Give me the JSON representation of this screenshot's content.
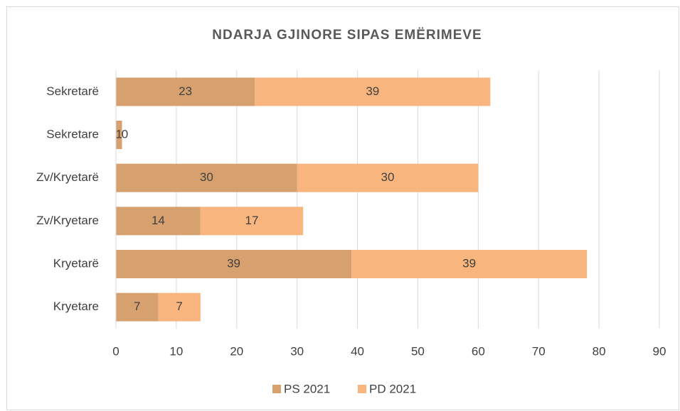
{
  "chart_data": {
    "type": "stacked_barh",
    "title": "NDARJA GJINORE SIPAS EMËRIMEVE",
    "categories": [
      "Sekretarë",
      "Sekretare",
      "Zv/Kryetarë",
      "Zv/Kryetare",
      "Kryetarë",
      "Kryetare"
    ],
    "series": [
      {
        "name": "PS 2021",
        "color": "#d7a06f",
        "values": [
          23,
          1,
          30,
          14,
          39,
          7
        ]
      },
      {
        "name": "PD 2021",
        "color": "#f8b57e",
        "values": [
          39,
          0,
          30,
          17,
          39,
          7
        ]
      }
    ],
    "xlim": [
      0,
      90
    ],
    "xticks": [
      0,
      10,
      20,
      30,
      40,
      50,
      60,
      70,
      80,
      90
    ],
    "grid": true,
    "legend": "bottom"
  }
}
